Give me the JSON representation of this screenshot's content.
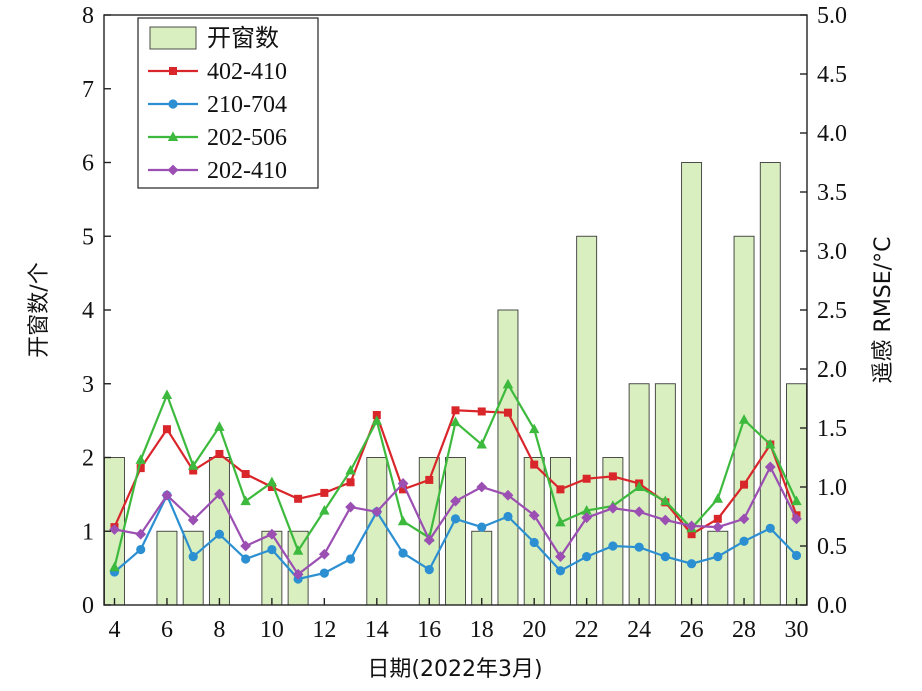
{
  "chart_data": {
    "type": "bar+line",
    "x": [
      4,
      5,
      6,
      7,
      8,
      9,
      10,
      11,
      12,
      13,
      14,
      15,
      16,
      17,
      18,
      19,
      20,
      21,
      22,
      23,
      24,
      25,
      26,
      27,
      28,
      29,
      30
    ],
    "xlabel": "日期(2022年3月)",
    "x_ticks": [
      "4",
      "6",
      "8",
      "10",
      "12",
      "14",
      "16",
      "18",
      "20",
      "22",
      "24",
      "26",
      "28",
      "30"
    ],
    "xlim": [
      3.6,
      30.4
    ],
    "ylabel_left": "开窗数/个",
    "ylim_left": [
      0,
      8
    ],
    "y_ticks_left": [
      "0",
      "1",
      "2",
      "3",
      "4",
      "5",
      "6",
      "7",
      "8"
    ],
    "ylabel_right": "遥感 RMSE/°C",
    "ylim_right": [
      0,
      5
    ],
    "y_ticks_right": [
      "0.0",
      "0.5",
      "1.0",
      "1.5",
      "2.0",
      "2.5",
      "3.0",
      "3.5",
      "4.0",
      "4.5",
      "5.0"
    ],
    "bars": {
      "name": "开窗数",
      "axis": "left",
      "color": "#d9efc0",
      "values": [
        2,
        0,
        1,
        1,
        2,
        0,
        1,
        1,
        0,
        0,
        2,
        0,
        2,
        2,
        1,
        4,
        2,
        2,
        5,
        2,
        3,
        3,
        6,
        1,
        5,
        6,
        3
      ]
    },
    "series": [
      {
        "name": "402-410",
        "axis": "right",
        "color": "#d9262b",
        "marker": "square",
        "values": [
          0.66,
          1.16,
          1.49,
          1.14,
          1.28,
          1.11,
          1.0,
          0.9,
          0.95,
          1.04,
          1.61,
          0.98,
          1.06,
          1.65,
          1.64,
          1.63,
          1.19,
          0.98,
          1.07,
          1.09,
          1.03,
          0.87,
          0.6,
          0.73,
          1.02,
          1.36,
          0.76
        ]
      },
      {
        "name": "210-704",
        "axis": "right",
        "color": "#2b8fd1",
        "marker": "circle",
        "values": [
          0.28,
          0.47,
          0.93,
          0.41,
          0.6,
          0.39,
          0.47,
          0.22,
          0.27,
          0.39,
          0.79,
          0.44,
          0.3,
          0.73,
          0.66,
          0.75,
          0.53,
          0.29,
          0.41,
          0.5,
          0.49,
          0.41,
          0.35,
          0.41,
          0.54,
          0.65,
          0.42
        ]
      },
      {
        "name": "202-506",
        "axis": "right",
        "color": "#3dba3d",
        "marker": "triangle",
        "values": [
          0.32,
          1.23,
          1.78,
          1.18,
          1.51,
          0.88,
          1.04,
          0.46,
          0.8,
          1.14,
          1.56,
          0.71,
          0.57,
          1.55,
          1.36,
          1.87,
          1.49,
          0.7,
          0.8,
          0.84,
          1.0,
          0.88,
          0.65,
          0.9,
          1.57,
          1.36,
          0.88
        ]
      },
      {
        "name": "202-410",
        "axis": "right",
        "color": "#9b4fb3",
        "marker": "diamond",
        "values": [
          0.64,
          0.6,
          0.93,
          0.72,
          0.94,
          0.5,
          0.6,
          0.26,
          0.43,
          0.83,
          0.79,
          1.03,
          0.55,
          0.88,
          1.0,
          0.93,
          0.76,
          0.41,
          0.74,
          0.82,
          0.79,
          0.72,
          0.67,
          0.66,
          0.73,
          1.17,
          0.73
        ]
      }
    ],
    "legend": {
      "position": "top-left",
      "entries": [
        "开窗数",
        "402-410",
        "210-704",
        "202-506",
        "202-410"
      ]
    }
  }
}
